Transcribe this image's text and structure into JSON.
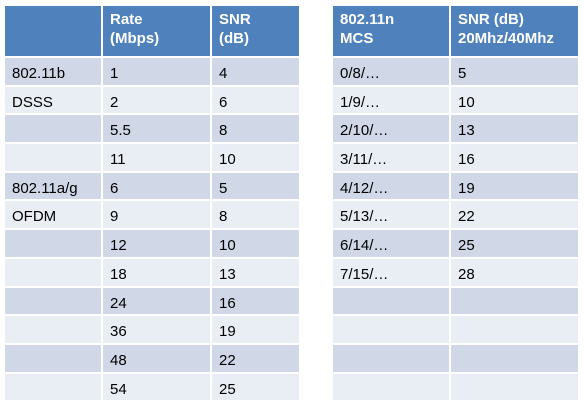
{
  "legacy_table": {
    "headers": [
      [
        "",
        ""
      ],
      [
        "Rate",
        "(Mbps)"
      ],
      [
        "SNR",
        "(dB)"
      ]
    ],
    "rows": [
      [
        "802.11b",
        "1",
        "4"
      ],
      [
        "DSSS",
        "2",
        "6"
      ],
      [
        "",
        "5.5",
        "8"
      ],
      [
        "",
        "11",
        "10"
      ],
      [
        "802.11a/g",
        "6",
        "5"
      ],
      [
        "OFDM",
        "9",
        "8"
      ],
      [
        "",
        "12",
        "10"
      ],
      [
        "",
        "18",
        "13"
      ],
      [
        "",
        "24",
        "16"
      ],
      [
        "",
        "36",
        "19"
      ],
      [
        "",
        "48",
        "22"
      ],
      [
        "",
        "54",
        "25"
      ]
    ]
  },
  "mcs_table": {
    "headers": [
      [
        "802.11n",
        "MCS"
      ],
      [
        "SNR (dB)",
        "20Mhz/40Mhz"
      ]
    ],
    "rows": [
      [
        "0/8/…",
        "5"
      ],
      [
        "1/9/…",
        "10"
      ],
      [
        "2/10/…",
        "13"
      ],
      [
        "3/11/…",
        "16"
      ],
      [
        "4/12/…",
        "19"
      ],
      [
        "5/13/…",
        "22"
      ],
      [
        "6/14/…",
        "25"
      ],
      [
        "7/15/…",
        "28"
      ],
      [
        "",
        ""
      ],
      [
        "",
        ""
      ],
      [
        "",
        ""
      ],
      [
        "",
        ""
      ]
    ]
  },
  "colors": {
    "header": "#4f81bd",
    "row_odd": "#d0d8e8",
    "row_even": "#e9edf4"
  }
}
